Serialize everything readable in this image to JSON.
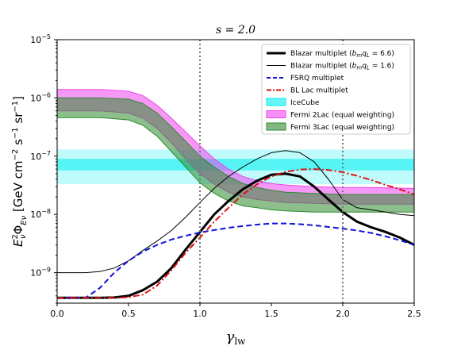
{
  "chart_data": {
    "type": "line",
    "title": "s = 2.0",
    "xlabel": "γ_lw",
    "ylabel": "E_ν² Φ_Eν [GeV cm⁻² s⁻¹ sr⁻¹]",
    "xlim": [
      0.0,
      2.5
    ],
    "ylim": [
      3e-10,
      1e-05
    ],
    "yscale": "log",
    "x_ticks": [
      "0.0",
      "0.5",
      "1.0",
      "1.5",
      "2.0",
      "2.5"
    ],
    "y_ticks": [
      "10^-9",
      "10^-8",
      "10^-7",
      "10^-6",
      "10^-5"
    ],
    "vlines": [
      1.0,
      2.0
    ],
    "legend_position": "top-right",
    "series": [
      {
        "name": "Blazar multiplet (b_m q_L = 6.6)",
        "style": "line",
        "color": "#000000",
        "width": 3,
        "x": [
          0.0,
          0.2,
          0.3,
          0.4,
          0.5,
          0.6,
          0.7,
          0.8,
          0.9,
          1.0,
          1.1,
          1.2,
          1.3,
          1.4,
          1.5,
          1.6,
          1.7,
          1.8,
          1.9,
          2.0,
          2.1,
          2.2,
          2.3,
          2.4,
          2.5
        ],
        "y": [
          3.7e-10,
          3.7e-10,
          3.7e-10,
          3.75e-10,
          4e-10,
          5e-10,
          7e-10,
          1.2e-09,
          2.5e-09,
          5e-09,
          1e-08,
          1.7e-08,
          2.7e-08,
          3.8e-08,
          4.8e-08,
          5e-08,
          4.5e-08,
          3e-08,
          1.8e-08,
          1.1e-08,
          7.5e-09,
          6e-09,
          5e-09,
          4e-09,
          3e-09
        ]
      },
      {
        "name": "Blazar multiplet (b_m q_L = 1.6)",
        "style": "line",
        "color": "#000000",
        "width": 1,
        "x": [
          0.0,
          0.2,
          0.3,
          0.4,
          0.5,
          0.6,
          0.7,
          0.8,
          0.9,
          1.0,
          1.1,
          1.2,
          1.3,
          1.4,
          1.5,
          1.6,
          1.7,
          1.8,
          1.9,
          2.0,
          2.1,
          2.2,
          2.3,
          2.4,
          2.5
        ],
        "y": [
          1e-09,
          1e-09,
          1.05e-09,
          1.2e-09,
          1.6e-09,
          2.4e-09,
          3.5e-09,
          5.3e-09,
          9e-09,
          1.6e-08,
          2.8e-08,
          4.5e-08,
          6.5e-08,
          9e-08,
          1.15e-07,
          1.25e-07,
          1.15e-07,
          8e-08,
          4e-08,
          1.8e-08,
          1.3e-08,
          1.2e-08,
          1.1e-08,
          1e-08,
          9.5e-09
        ]
      },
      {
        "name": "FSRQ multiplet",
        "style": "dashed",
        "color": "#1010dd",
        "width": 2,
        "x": [
          0.0,
          0.2,
          0.3,
          0.4,
          0.5,
          0.6,
          0.7,
          0.8,
          0.9,
          1.0,
          1.1,
          1.2,
          1.3,
          1.4,
          1.5,
          1.6,
          1.7,
          1.8,
          1.9,
          2.0,
          2.1,
          2.2,
          2.3,
          2.4,
          2.5
        ],
        "y": [
          3.7e-10,
          3.7e-10,
          5.5e-10,
          1e-09,
          1.6e-09,
          2.3e-09,
          3e-09,
          3.7e-09,
          4.3e-09,
          4.9e-09,
          5.4e-09,
          5.9e-09,
          6.3e-09,
          6.7e-09,
          7e-09,
          7e-09,
          6.8e-09,
          6.5e-09,
          6.1e-09,
          5.7e-09,
          5.3e-09,
          4.8e-09,
          4.2e-09,
          3.6e-09,
          3e-09
        ]
      },
      {
        "name": "BL Lac multiplet",
        "style": "dashdot",
        "color": "#dd1111",
        "width": 2,
        "x": [
          0.0,
          0.2,
          0.3,
          0.4,
          0.5,
          0.6,
          0.7,
          0.8,
          0.9,
          1.0,
          1.1,
          1.2,
          1.3,
          1.4,
          1.5,
          1.6,
          1.7,
          1.8,
          1.9,
          2.0,
          2.1,
          2.2,
          2.3,
          2.4,
          2.5
        ],
        "y": [
          3.7e-10,
          3.7e-10,
          3.7e-10,
          3.7e-10,
          3.8e-10,
          4.2e-10,
          6e-10,
          1.1e-09,
          2.2e-09,
          4e-09,
          7.5e-09,
          1.3e-08,
          2.2e-08,
          3.3e-08,
          4.5e-08,
          5.4e-08,
          5.9e-08,
          6e-08,
          5.8e-08,
          5.3e-08,
          4.6e-08,
          3.9e-08,
          3.2e-08,
          2.7e-08,
          2.2e-08
        ]
      },
      {
        "name": "IceCube",
        "style": "band",
        "color": "#00eeee",
        "x": [
          0.0,
          2.5
        ],
        "y_inner": [
          5.7e-08,
          9e-08
        ],
        "y_outer": [
          3.3e-08,
          1.3e-07
        ]
      },
      {
        "name": "Fermi 2Lac (equal weighting)",
        "style": "band",
        "color": "#ee44ee",
        "x": [
          0.0,
          0.3,
          0.5,
          0.6,
          0.7,
          0.8,
          0.9,
          1.0,
          1.1,
          1.2,
          1.3,
          1.4,
          1.5,
          1.6,
          1.8,
          2.0,
          2.2,
          2.5
        ],
        "y_low": [
          6e-07,
          6e-07,
          5.5e-07,
          4.5e-07,
          3e-07,
          1.7e-07,
          9e-08,
          5e-08,
          3.3e-08,
          2.4e-08,
          2e-08,
          1.8e-08,
          1.7e-08,
          1.6e-08,
          1.55e-08,
          1.5e-08,
          1.5e-08,
          1.5e-08
        ],
        "y_high": [
          1.4e-06,
          1.4e-06,
          1.3e-06,
          1.1e-06,
          7.5e-07,
          4.5e-07,
          2.6e-07,
          1.5e-07,
          9e-08,
          6e-08,
          4.5e-08,
          3.8e-08,
          3.4e-08,
          3.2e-08,
          3e-08,
          2.9e-08,
          2.9e-08,
          2.8e-08
        ]
      },
      {
        "name": "Fermi 3Lac (equal weighting)",
        "style": "band",
        "color": "#2e8b2e",
        "x": [
          0.0,
          0.3,
          0.5,
          0.6,
          0.7,
          0.8,
          0.9,
          1.0,
          1.1,
          1.2,
          1.3,
          1.4,
          1.5,
          1.6,
          1.8,
          2.0,
          2.2,
          2.5
        ],
        "y_low": [
          4.6e-07,
          4.6e-07,
          4.2e-07,
          3.4e-07,
          2.2e-07,
          1.2e-07,
          6.5e-08,
          3.5e-08,
          2.3e-08,
          1.7e-08,
          1.4e-08,
          1.3e-08,
          1.2e-08,
          1.15e-08,
          1.1e-08,
          1.1e-08,
          1.1e-08,
          1.1e-08
        ],
        "y_high": [
          1e-06,
          1e-06,
          9.5e-07,
          8e-07,
          5.5e-07,
          3.2e-07,
          1.8e-07,
          1e-07,
          6.5e-08,
          4.5e-08,
          3.4e-08,
          2.9e-08,
          2.6e-08,
          2.4e-08,
          2.3e-08,
          2.2e-08,
          2.2e-08,
          2.2e-08
        ]
      }
    ]
  }
}
